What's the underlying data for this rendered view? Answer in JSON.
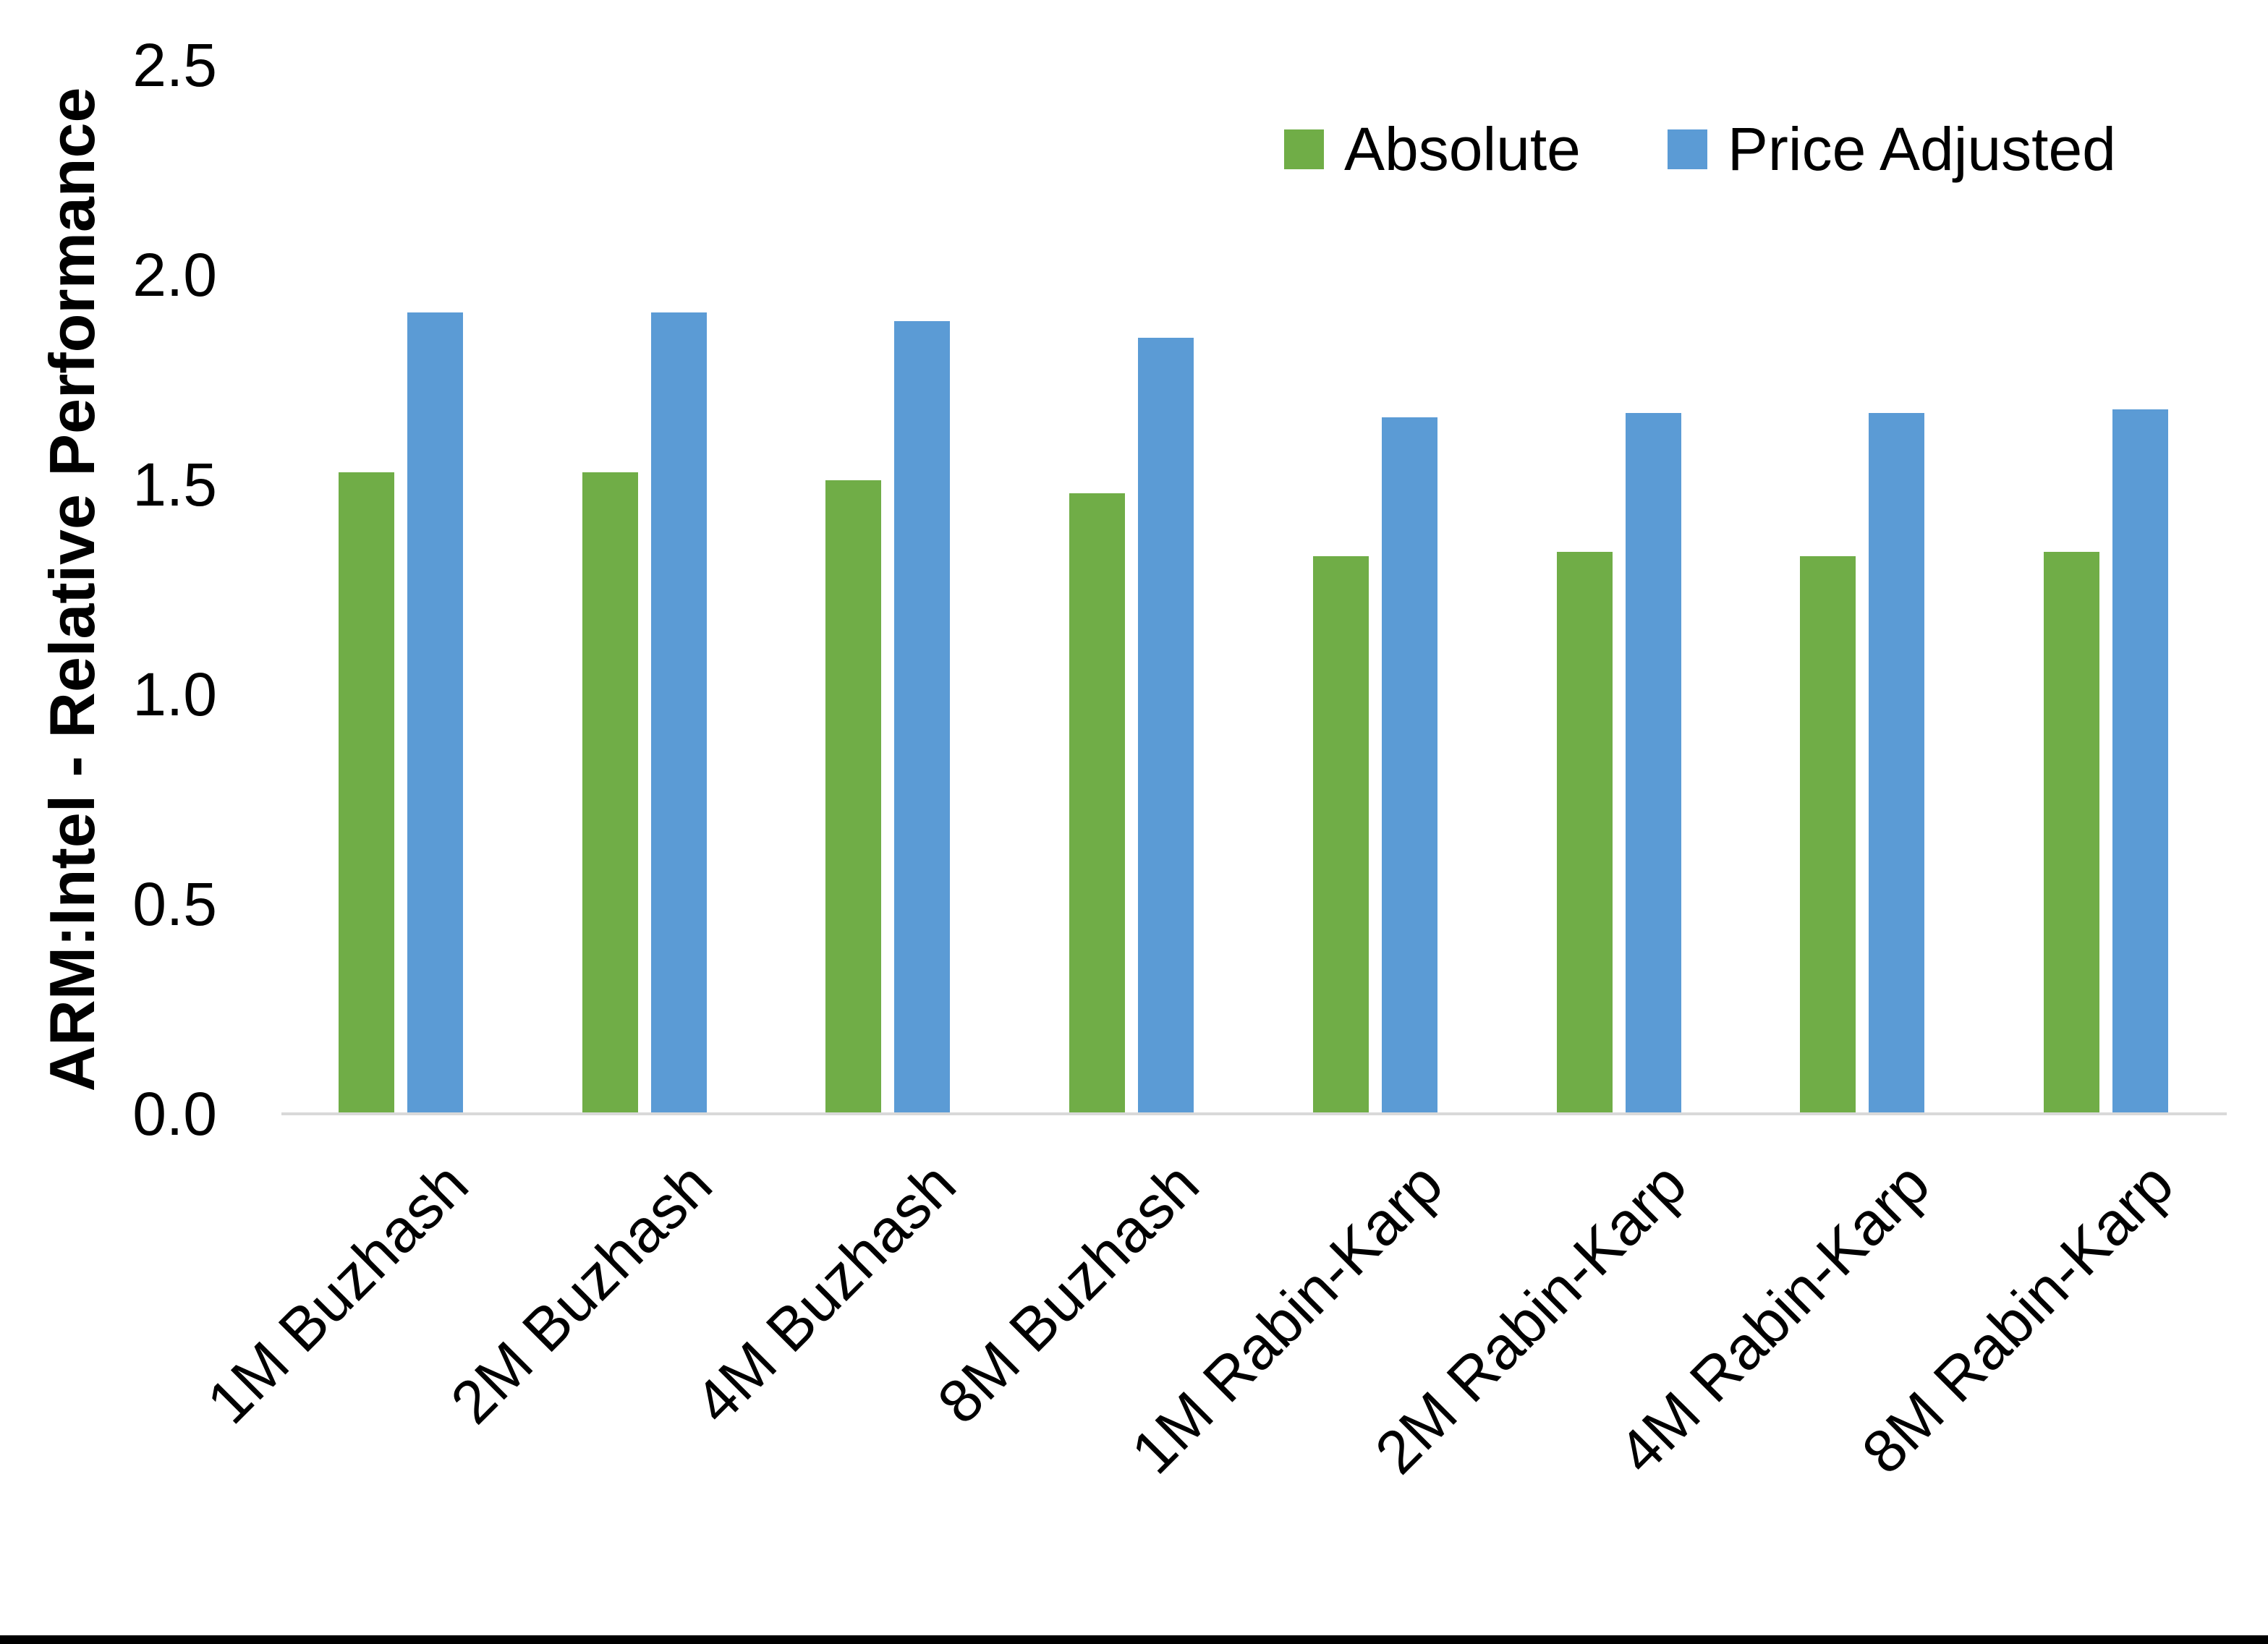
{
  "chart_data": {
    "type": "bar",
    "title": "",
    "xlabel": "",
    "ylabel": "ARM:Intel - Relative Performance",
    "ylim": [
      0,
      2.5
    ],
    "y_ticks": [
      0.0,
      0.5,
      1.0,
      1.5,
      2.0,
      2.5
    ],
    "y_tick_labels": [
      "0.0",
      "0.5",
      "1.0",
      "1.5",
      "2.0",
      "2.5"
    ],
    "grid": false,
    "legend_position": "top-right",
    "axis_line_color": "#D9D9D9",
    "categories": [
      "1M Buzhash",
      "2M Buzhash",
      "4M Buzhash",
      "8M Buzhash",
      "1M Rabin-Karp",
      "2M Rabin-Karp",
      "4M Rabin-Karp",
      "8M Rabin-Karp"
    ],
    "series": [
      {
        "name": "Absolute",
        "color": "#70AD47",
        "values": [
          1.53,
          1.53,
          1.51,
          1.48,
          1.33,
          1.34,
          1.33,
          1.34
        ]
      },
      {
        "name": "Price Adjusted",
        "color": "#5B9BD5",
        "values": [
          1.91,
          1.91,
          1.89,
          1.85,
          1.66,
          1.67,
          1.67,
          1.68
        ]
      }
    ]
  }
}
